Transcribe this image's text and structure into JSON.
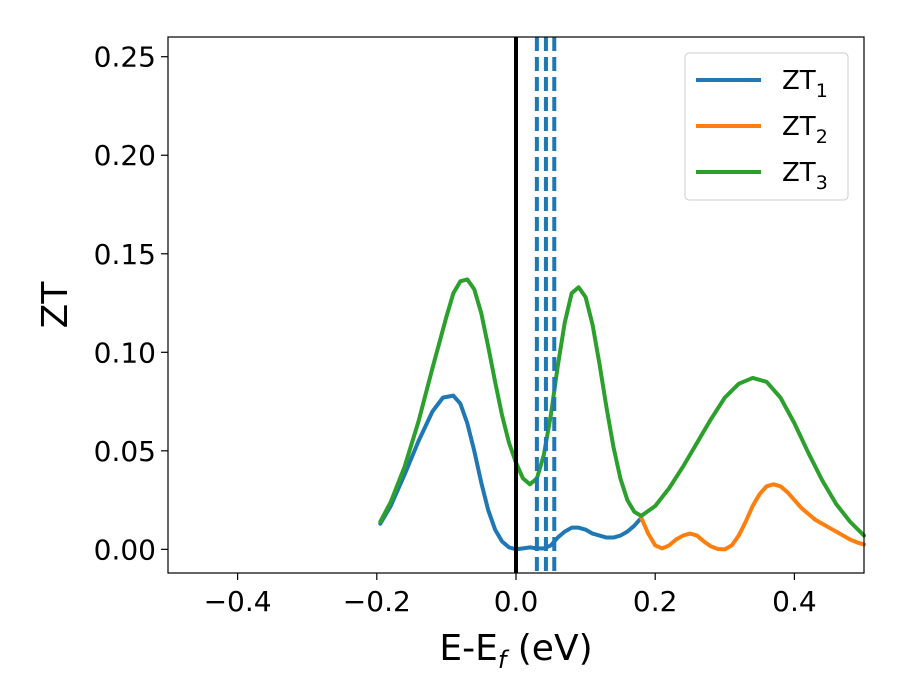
{
  "chart_data": {
    "type": "line",
    "title": "",
    "xlabel": "E-E",
    "xlabel_sub": "f",
    "xlabel_unit": " (eV)",
    "ylabel": "ZT",
    "xlim": [
      -0.5,
      0.5
    ],
    "ylim": [
      -0.012,
      0.26
    ],
    "xticks": [
      -0.4,
      -0.2,
      0.0,
      0.2,
      0.4
    ],
    "xtick_labels": [
      "−0.4",
      "−0.2",
      "0.0",
      "0.2",
      "0.4"
    ],
    "yticks": [
      0.0,
      0.05,
      0.1,
      0.15,
      0.2,
      0.25
    ],
    "ytick_labels": [
      "0.00",
      "0.05",
      "0.10",
      "0.15",
      "0.20",
      "0.25"
    ],
    "grid": false,
    "legend_position": "top-right",
    "vertical_lines": [
      {
        "x": 0.0,
        "color": "#000000",
        "style": "solid"
      },
      {
        "x": 0.03,
        "color": "#1f77b4",
        "style": "dashed"
      },
      {
        "x": 0.043,
        "color": "#1f77b4",
        "style": "dashed"
      },
      {
        "x": 0.055,
        "color": "#1f77b4",
        "style": "dashed"
      }
    ],
    "series": [
      {
        "name": "ZT",
        "sub": "1",
        "color": "#1f77b4",
        "x": [
          -0.195,
          -0.18,
          -0.16,
          -0.14,
          -0.12,
          -0.105,
          -0.09,
          -0.08,
          -0.07,
          -0.06,
          -0.05,
          -0.04,
          -0.03,
          -0.02,
          -0.01,
          0.0,
          0.01,
          0.02,
          0.03,
          0.04,
          0.05,
          0.06,
          0.07,
          0.08,
          0.09,
          0.1,
          0.11,
          0.12,
          0.13,
          0.14,
          0.15,
          0.16,
          0.17,
          0.18
        ],
        "y": [
          0.013,
          0.022,
          0.038,
          0.055,
          0.07,
          0.077,
          0.078,
          0.074,
          0.064,
          0.05,
          0.034,
          0.02,
          0.01,
          0.004,
          0.001,
          0.0,
          0.0005,
          0.001,
          0.0005,
          0.0005,
          0.002,
          0.006,
          0.009,
          0.011,
          0.011,
          0.01,
          0.008,
          0.007,
          0.006,
          0.006,
          0.007,
          0.009,
          0.012,
          0.016
        ]
      },
      {
        "name": "ZT",
        "sub": "2",
        "color": "#ff7f0e",
        "x": [
          0.18,
          0.19,
          0.2,
          0.21,
          0.22,
          0.23,
          0.24,
          0.25,
          0.26,
          0.27,
          0.28,
          0.29,
          0.3,
          0.31,
          0.32,
          0.33,
          0.34,
          0.35,
          0.36,
          0.37,
          0.38,
          0.39,
          0.4,
          0.41,
          0.42,
          0.43,
          0.44,
          0.45,
          0.46,
          0.47,
          0.48,
          0.49,
          0.5
        ],
        "y": [
          0.016,
          0.008,
          0.002,
          0.0005,
          0.002,
          0.005,
          0.007,
          0.008,
          0.007,
          0.004,
          0.0015,
          0.0002,
          0.0,
          0.002,
          0.007,
          0.014,
          0.022,
          0.028,
          0.032,
          0.033,
          0.032,
          0.029,
          0.025,
          0.021,
          0.018,
          0.015,
          0.013,
          0.011,
          0.009,
          0.007,
          0.005,
          0.0035,
          0.0025
        ]
      },
      {
        "name": "ZT",
        "sub": "3",
        "color": "#2ca02c",
        "x": [
          -0.195,
          -0.18,
          -0.16,
          -0.14,
          -0.12,
          -0.1,
          -0.09,
          -0.08,
          -0.07,
          -0.06,
          -0.05,
          -0.04,
          -0.03,
          -0.02,
          -0.01,
          0.0,
          0.01,
          0.02,
          0.03,
          0.04,
          0.05,
          0.06,
          0.07,
          0.08,
          0.09,
          0.1,
          0.11,
          0.12,
          0.13,
          0.14,
          0.15,
          0.16,
          0.17,
          0.18,
          0.2,
          0.22,
          0.24,
          0.26,
          0.28,
          0.3,
          0.32,
          0.34,
          0.36,
          0.38,
          0.4,
          0.42,
          0.44,
          0.46,
          0.48,
          0.5
        ],
        "y": [
          0.014,
          0.024,
          0.042,
          0.065,
          0.092,
          0.118,
          0.13,
          0.136,
          0.137,
          0.132,
          0.12,
          0.103,
          0.085,
          0.068,
          0.054,
          0.044,
          0.036,
          0.033,
          0.036,
          0.048,
          0.068,
          0.093,
          0.115,
          0.13,
          0.133,
          0.128,
          0.114,
          0.094,
          0.072,
          0.052,
          0.036,
          0.025,
          0.019,
          0.017,
          0.022,
          0.031,
          0.042,
          0.054,
          0.066,
          0.077,
          0.084,
          0.087,
          0.085,
          0.077,
          0.064,
          0.049,
          0.035,
          0.023,
          0.014,
          0.007
        ]
      }
    ]
  }
}
